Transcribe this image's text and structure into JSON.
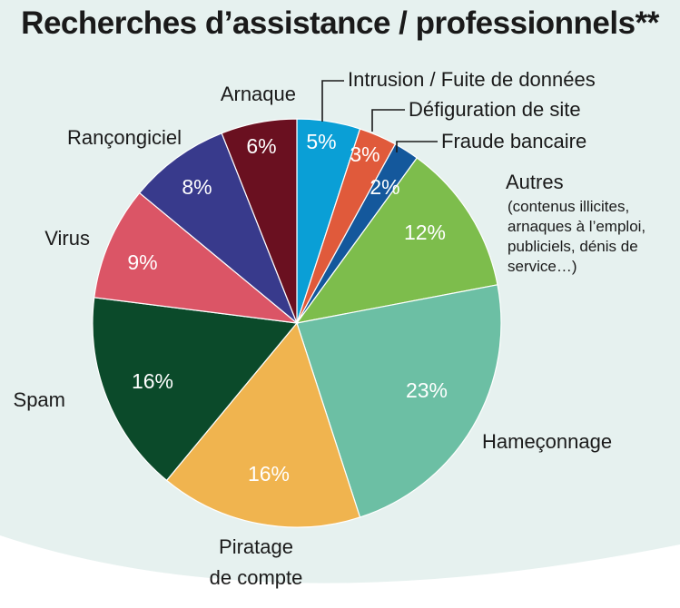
{
  "chart_data": {
    "type": "pie",
    "title": "Recherches d’assistance / professionnels**",
    "slices": [
      {
        "label": "Intrusion / Fuite de données",
        "value": 5,
        "value_label": "5%",
        "color": "#0a9fd6"
      },
      {
        "label": "Défiguration de site",
        "value": 3,
        "value_label": "3%",
        "color": "#e05a3b"
      },
      {
        "label": "Fraude bancaire",
        "value": 2,
        "value_label": "2%",
        "color": "#14589c"
      },
      {
        "label": "Autres",
        "sublabel": [
          "(contenus illicites,",
          "arnaques à l’emploi,",
          "publiciels,  dénis de",
          "service…)"
        ],
        "value": 12,
        "value_label": "12%",
        "color": "#7dbd4c"
      },
      {
        "label": "Hameçonnage",
        "value": 23,
        "value_label": "23%",
        "color": "#6cbfa4"
      },
      {
        "label": "Piratage de compte",
        "label_lines": [
          "Piratage",
          "de compte"
        ],
        "value": 16,
        "value_label": "16%",
        "color": "#f0b44f"
      },
      {
        "label": "Spam",
        "value": 16,
        "value_label": "16%",
        "color": "#0b4a2a"
      },
      {
        "label": "Virus",
        "value": 9,
        "value_label": "9%",
        "color": "#db5566"
      },
      {
        "label": "Rançongiciel",
        "value": 8,
        "value_label": "8%",
        "color": "#383a8c"
      },
      {
        "label": "Arnaque",
        "value": 6,
        "value_label": "6%",
        "color": "#6a1020"
      }
    ]
  }
}
